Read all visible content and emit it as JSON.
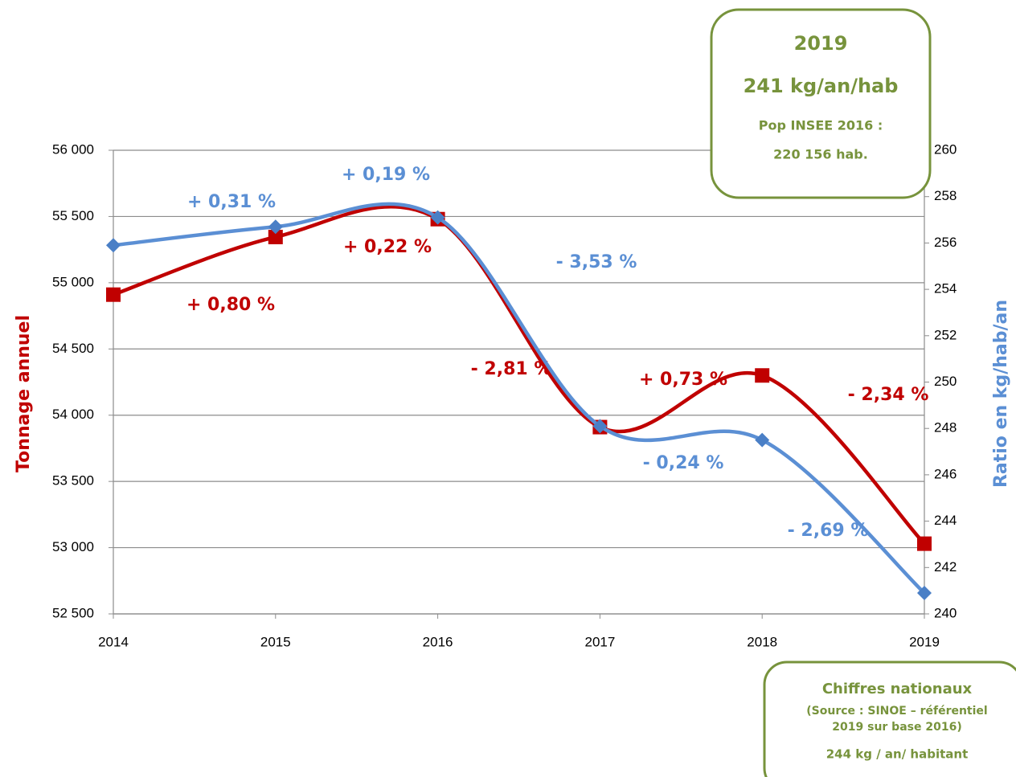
{
  "chart_data": {
    "type": "line",
    "categories": [
      "2014",
      "2015",
      "2016",
      "2017",
      "2018",
      "2019"
    ],
    "y_label": "Tonnage annuel",
    "y2_label": "Ratio en kg/hab/an",
    "ylim": [
      52500,
      56000
    ],
    "yticks": [
      {
        "value": 52500,
        "label": "52 500"
      },
      {
        "value": 53000,
        "label": "53 000"
      },
      {
        "value": 53500,
        "label": "53 500"
      },
      {
        "value": 54000,
        "label": "54 000"
      },
      {
        "value": 54500,
        "label": "54 500"
      },
      {
        "value": 55000,
        "label": "55 000"
      },
      {
        "value": 55500,
        "label": "55 500"
      },
      {
        "value": 56000,
        "label": "56 000"
      }
    ],
    "y2lim": [
      240,
      260
    ],
    "y2ticks": [
      240,
      242,
      244,
      246,
      248,
      250,
      252,
      254,
      256,
      258,
      260
    ],
    "grid": true,
    "series": [
      {
        "name": "Tonnage annuel",
        "color": "#c00000",
        "values": [
          54910,
          55345,
          55480,
          53910,
          54300,
          53030
        ],
        "change_labels": [
          "+ 0,80 %",
          "+ 0,22 %",
          "- 2,81 %",
          "+ 0,73 %",
          "- 2,34 %"
        ]
      },
      {
        "name": "Ratio en kg/hab/an",
        "color": "#5b8fd4",
        "axis": "y2",
        "values": [
          255.9,
          256.7,
          257.1,
          248.1,
          247.5,
          240.9
        ],
        "change_labels": [
          "+ 0,31 %",
          "+ 0,19 %",
          "- 3,53 %",
          "- 0,24 %",
          "- 2,69 %"
        ]
      }
    ]
  },
  "boxes": [
    {
      "lines": [
        "2019",
        "241 kg/an/hab",
        "Pop INSEE 2016 :",
        "220 156 hab."
      ]
    },
    {
      "lines": [
        "Chiffres nationaux",
        "(Source : SINOE – référentiel",
        "2019 sur base 2016)",
        "244 kg / an/ habitant"
      ]
    }
  ]
}
